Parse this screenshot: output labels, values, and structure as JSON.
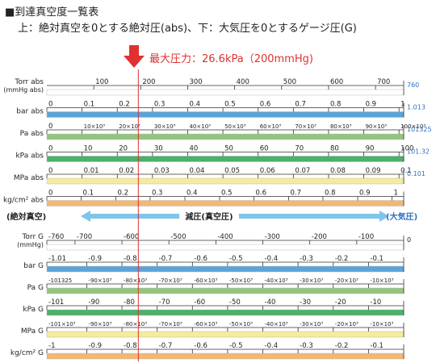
{
  "header": {
    "title": "■到達真空度一覧表",
    "subtitle": "上：絶対真空を0とする絶対圧(abs)、下：大気圧を0とするゲージ圧(G)"
  },
  "marker": {
    "label": "最大圧力：26.6kPa（200mmHg)",
    "color": "#e03030",
    "value_torr": 200
  },
  "direction": {
    "left_label": "(絶対真空)",
    "center_label": "減圧(真空圧)",
    "right_label": "(大気圧)",
    "arrow_color": "#7fc4ea"
  },
  "chart_data": {
    "type": "table",
    "x_range_torr": [
      0,
      760
    ],
    "abs_scales": [
      {
        "label": "Torr abs\n(mmHg abs)",
        "band_color": "#ffffff",
        "end_label": "760",
        "end_color": "#3070c0",
        "ticks": [
          {
            "t": 100,
            "s": "100"
          },
          {
            "t": 200,
            "s": "200"
          },
          {
            "t": 300,
            "s": "300"
          },
          {
            "t": 400,
            "s": "400"
          },
          {
            "t": 500,
            "s": "500"
          },
          {
            "t": 600,
            "s": "600"
          },
          {
            "t": 700,
            "s": "700"
          }
        ]
      },
      {
        "label": "bar abs",
        "band_color": "#5ba3d9",
        "end_label": "1.013",
        "end_color": "#3070c0",
        "ticks": [
          {
            "t": 0,
            "s": "0"
          },
          {
            "t": 75,
            "s": "0.1"
          },
          {
            "t": 150,
            "s": "0.2"
          },
          {
            "t": 225,
            "s": "0.3"
          },
          {
            "t": 300,
            "s": "0.4"
          },
          {
            "t": 375,
            "s": "0.5"
          },
          {
            "t": 450,
            "s": "0.6"
          },
          {
            "t": 525,
            "s": "0.7"
          },
          {
            "t": 600,
            "s": "0.8"
          },
          {
            "t": 675,
            "s": "0.9"
          },
          {
            "t": 750,
            "s": "1"
          }
        ]
      },
      {
        "label": "Pa abs",
        "band_color": "#93c47d",
        "end_label": "101325",
        "end_color": "#3070c0",
        "ticks": [
          {
            "t": 0,
            "s": "0"
          },
          {
            "t": 75,
            "s": "10×10³"
          },
          {
            "t": 150,
            "s": "20×10³"
          },
          {
            "t": 225,
            "s": "30×10³"
          },
          {
            "t": 300,
            "s": "40×10³"
          },
          {
            "t": 375,
            "s": "50×10³"
          },
          {
            "t": 450,
            "s": "60×10³"
          },
          {
            "t": 525,
            "s": "70×10³"
          },
          {
            "t": 600,
            "s": "80×10³"
          },
          {
            "t": 675,
            "s": "90×10³"
          },
          {
            "t": 750,
            "s": "100×10³"
          }
        ]
      },
      {
        "label": "kPa abs",
        "band_color": "#4caf6a",
        "end_label": "101.32",
        "end_color": "#3070c0",
        "ticks": [
          {
            "t": 0,
            "s": "0"
          },
          {
            "t": 75,
            "s": "10"
          },
          {
            "t": 150,
            "s": "20"
          },
          {
            "t": 225,
            "s": "30"
          },
          {
            "t": 300,
            "s": "40"
          },
          {
            "t": 375,
            "s": "50"
          },
          {
            "t": 450,
            "s": "60"
          },
          {
            "t": 525,
            "s": "70"
          },
          {
            "t": 600,
            "s": "80"
          },
          {
            "t": 675,
            "s": "90"
          },
          {
            "t": 750,
            "s": "100"
          }
        ]
      },
      {
        "label": "MPa abs",
        "band_color": "#f5eb9a",
        "end_label": "0.101",
        "end_color": "#3070c0",
        "ticks": [
          {
            "t": 0,
            "s": "0"
          },
          {
            "t": 75,
            "s": "0.01"
          },
          {
            "t": 150,
            "s": "0.02"
          },
          {
            "t": 225,
            "s": "0.03"
          },
          {
            "t": 300,
            "s": "0.04"
          },
          {
            "t": 375,
            "s": "0.05"
          },
          {
            "t": 450,
            "s": "0.06"
          },
          {
            "t": 525,
            "s": "0.07"
          },
          {
            "t": 600,
            "s": "0.08"
          },
          {
            "t": 675,
            "s": "0.09"
          },
          {
            "t": 750,
            "s": "0.1"
          }
        ]
      },
      {
        "label": "kg/cm² abs",
        "band_color": "#f2b872",
        "end_label": "",
        "end_color": "#3070c0",
        "ticks": [
          {
            "t": 0,
            "s": "0"
          },
          {
            "t": 73,
            "s": "0.1"
          },
          {
            "t": 147,
            "s": "0.2"
          },
          {
            "t": 220,
            "s": "0.3"
          },
          {
            "t": 294,
            "s": "0.4"
          },
          {
            "t": 368,
            "s": "0.5"
          },
          {
            "t": 441,
            "s": "0.6"
          },
          {
            "t": 515,
            "s": "0.7"
          },
          {
            "t": 588,
            "s": "0.8"
          },
          {
            "t": 662,
            "s": "0.9"
          },
          {
            "t": 735,
            "s": "1"
          }
        ]
      }
    ],
    "gauge_scales": [
      {
        "label": "Torr G\n(mmHg)",
        "band_color": "#ffffff",
        "end_label": "0",
        "end_color": "#222222",
        "ticks": [
          {
            "t": 0,
            "s": "-760"
          },
          {
            "t": 60,
            "s": "-700"
          },
          {
            "t": 160,
            "s": "-600"
          },
          {
            "t": 260,
            "s": "-500"
          },
          {
            "t": 360,
            "s": "-400"
          },
          {
            "t": 460,
            "s": "-300"
          },
          {
            "t": 560,
            "s": "-200"
          },
          {
            "t": 660,
            "s": "-100"
          }
        ]
      },
      {
        "label": "bar G",
        "band_color": "#5ba3d9",
        "end_label": "",
        "end_color": "#222222",
        "ticks": [
          {
            "t": 0,
            "s": "-1.01"
          },
          {
            "t": 85,
            "s": "-0.9"
          },
          {
            "t": 160,
            "s": "-0.8"
          },
          {
            "t": 235,
            "s": "-0.7"
          },
          {
            "t": 310,
            "s": "-0.6"
          },
          {
            "t": 385,
            "s": "-0.5"
          },
          {
            "t": 460,
            "s": "-0.4"
          },
          {
            "t": 535,
            "s": "-0.3"
          },
          {
            "t": 610,
            "s": "-0.2"
          },
          {
            "t": 685,
            "s": "-0.1"
          }
        ]
      },
      {
        "label": "Pa G",
        "band_color": "#93c47d",
        "end_label": "",
        "end_color": "#222222",
        "ticks": [
          {
            "t": 0,
            "s": "-101325"
          },
          {
            "t": 85,
            "s": "-90×10³"
          },
          {
            "t": 160,
            "s": "-80×10³"
          },
          {
            "t": 235,
            "s": "-70×10³"
          },
          {
            "t": 310,
            "s": "-60×10³"
          },
          {
            "t": 385,
            "s": "-50×10³"
          },
          {
            "t": 460,
            "s": "-40×10³"
          },
          {
            "t": 535,
            "s": "-30×10³"
          },
          {
            "t": 610,
            "s": "-20×10³"
          },
          {
            "t": 685,
            "s": "-10×10³"
          }
        ]
      },
      {
        "label": "kPa G",
        "band_color": "#4caf6a",
        "end_label": "",
        "end_color": "#222222",
        "ticks": [
          {
            "t": 0,
            "s": "-101"
          },
          {
            "t": 85,
            "s": "-90"
          },
          {
            "t": 160,
            "s": "-80"
          },
          {
            "t": 235,
            "s": "-70"
          },
          {
            "t": 310,
            "s": "-60"
          },
          {
            "t": 385,
            "s": "-50"
          },
          {
            "t": 460,
            "s": "-40"
          },
          {
            "t": 535,
            "s": "-30"
          },
          {
            "t": 610,
            "s": "-20"
          },
          {
            "t": 685,
            "s": "-10"
          }
        ]
      },
      {
        "label": "MPa G",
        "band_color": "#f5eb9a",
        "end_label": "",
        "end_color": "#222222",
        "ticks": [
          {
            "t": 0,
            "s": "-101×10³"
          },
          {
            "t": 85,
            "s": "-90×10³"
          },
          {
            "t": 160,
            "s": "-80×10³"
          },
          {
            "t": 235,
            "s": "-70×10³"
          },
          {
            "t": 310,
            "s": "-60×10³"
          },
          {
            "t": 385,
            "s": "-50×10³"
          },
          {
            "t": 460,
            "s": "-40×10³"
          },
          {
            "t": 535,
            "s": "-30×10³"
          },
          {
            "t": 610,
            "s": "-20×10³"
          },
          {
            "t": 685,
            "s": "-10×10³"
          }
        ]
      },
      {
        "label": "kg/cm² G",
        "band_color": "#f2b872",
        "end_label": "",
        "end_color": "#222222",
        "ticks": [
          {
            "t": 0,
            "s": "-1"
          },
          {
            "t": 85,
            "s": "-0.9"
          },
          {
            "t": 160,
            "s": "-0.8"
          },
          {
            "t": 235,
            "s": "-0.7"
          },
          {
            "t": 310,
            "s": "-0.6"
          },
          {
            "t": 385,
            "s": "-0.5"
          },
          {
            "t": 460,
            "s": "-0.4"
          },
          {
            "t": 535,
            "s": "-0.3"
          },
          {
            "t": 610,
            "s": "-0.2"
          },
          {
            "t": 685,
            "s": "-0.1"
          }
        ]
      }
    ]
  }
}
